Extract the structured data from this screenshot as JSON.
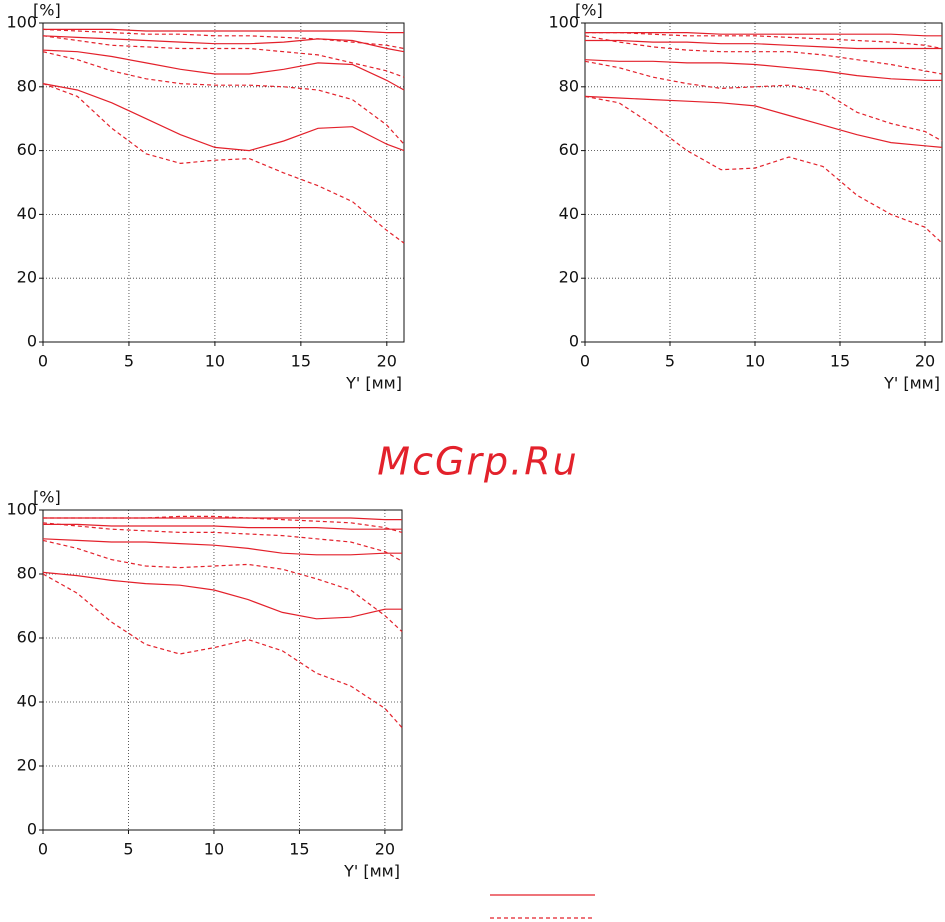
{
  "watermark": "McGrp.Ru",
  "chart_data": [
    {
      "type": "line",
      "ylabel": "[%]",
      "xlabel": "Y' [мм]",
      "grid": true,
      "x": [
        0,
        2,
        4,
        6,
        8,
        10,
        12,
        14,
        16,
        18,
        20,
        21
      ],
      "xlim": [
        0,
        21
      ],
      "xticks": [
        0,
        5,
        10,
        15,
        20
      ],
      "ylim": [
        0,
        100
      ],
      "yticks": [
        0,
        20,
        40,
        60,
        80,
        100
      ],
      "series": [
        {
          "color": "#e3212b",
          "dash": false,
          "values": [
            98,
            98,
            98,
            97.5,
            97.5,
            97.5,
            97.5,
            97.5,
            97.5,
            97.5,
            97,
            97
          ]
        },
        {
          "color": "#e3212b",
          "dash": false,
          "values": [
            96,
            95.5,
            95,
            94.5,
            94,
            93.5,
            93.5,
            94,
            95,
            94.5,
            92,
            91
          ]
        },
        {
          "color": "#e3212b",
          "dash": false,
          "values": [
            91.5,
            91,
            89.5,
            87.5,
            85.5,
            84,
            84,
            85.5,
            87.5,
            87,
            82,
            79
          ]
        },
        {
          "color": "#e3212b",
          "dash": false,
          "values": [
            81,
            79,
            75,
            70,
            65,
            61,
            60,
            63,
            67,
            67.5,
            62,
            60
          ]
        },
        {
          "color": "#e3212b",
          "dash": true,
          "values": [
            98,
            97.5,
            97,
            96.5,
            96.5,
            96,
            96,
            95.5,
            95,
            94,
            93,
            92
          ]
        },
        {
          "color": "#e3212b",
          "dash": true,
          "values": [
            96,
            94.5,
            93,
            92.5,
            92,
            92,
            92,
            91,
            90,
            87.5,
            85,
            83
          ]
        },
        {
          "color": "#e3212b",
          "dash": true,
          "values": [
            91,
            88.5,
            85,
            82.5,
            81,
            80.5,
            80.5,
            80,
            79,
            76,
            68,
            62
          ]
        },
        {
          "color": "#e3212b",
          "dash": true,
          "values": [
            81,
            77,
            67,
            59,
            56,
            57,
            57.5,
            53,
            49,
            44,
            35,
            31
          ]
        }
      ]
    },
    {
      "type": "line",
      "ylabel": "[%]",
      "xlabel": "Y' [мм]",
      "grid": true,
      "x": [
        0,
        2,
        4,
        6,
        8,
        10,
        12,
        14,
        16,
        18,
        20,
        21
      ],
      "xlim": [
        0,
        21
      ],
      "xticks": [
        0,
        5,
        10,
        15,
        20
      ],
      "ylim": [
        0,
        100
      ],
      "yticks": [
        0,
        20,
        40,
        60,
        80,
        100
      ],
      "series": [
        {
          "color": "#e3212b",
          "dash": false,
          "values": [
            97,
            97,
            97,
            97,
            96.5,
            96.5,
            96.5,
            96.5,
            96.5,
            96.5,
            96,
            96
          ]
        },
        {
          "color": "#e3212b",
          "dash": false,
          "values": [
            94.5,
            94.5,
            94,
            94,
            93.5,
            93.5,
            93,
            92.5,
            92,
            92,
            92,
            92
          ]
        },
        {
          "color": "#e3212b",
          "dash": false,
          "values": [
            88.5,
            88,
            88,
            87.5,
            87.5,
            87,
            86,
            85,
            83.5,
            82.5,
            82,
            82
          ]
        },
        {
          "color": "#e3212b",
          "dash": false,
          "values": [
            77,
            76.5,
            76,
            75.5,
            75,
            74,
            71,
            68,
            65,
            62.5,
            61.5,
            61
          ]
        },
        {
          "color": "#e3212b",
          "dash": true,
          "values": [
            97,
            97,
            96.5,
            96,
            96,
            96,
            95.5,
            95,
            94.5,
            94,
            93,
            92
          ]
        },
        {
          "color": "#e3212b",
          "dash": true,
          "values": [
            96,
            94,
            92.5,
            91.5,
            91,
            91,
            91,
            90,
            88.5,
            87,
            85,
            84
          ]
        },
        {
          "color": "#e3212b",
          "dash": true,
          "values": [
            88,
            86,
            83,
            81,
            79.5,
            80,
            80.5,
            78.5,
            72,
            68.5,
            66,
            63
          ]
        },
        {
          "color": "#e3212b",
          "dash": true,
          "values": [
            77,
            75,
            68,
            60,
            54,
            54.5,
            58,
            55,
            46,
            40,
            36,
            31
          ]
        }
      ]
    },
    {
      "type": "line",
      "ylabel": "[%]",
      "xlabel": "Y' [мм]",
      "grid": true,
      "x": [
        0,
        2,
        4,
        6,
        8,
        10,
        12,
        14,
        16,
        18,
        20,
        21
      ],
      "xlim": [
        0,
        21
      ],
      "xticks": [
        0,
        5,
        10,
        15,
        20
      ],
      "ylim": [
        0,
        100
      ],
      "yticks": [
        0,
        20,
        40,
        60,
        80,
        100
      ],
      "series": [
        {
          "color": "#e3212b",
          "dash": false,
          "values": [
            97.5,
            97.5,
            97.5,
            97.5,
            97.5,
            97.5,
            97.5,
            97.5,
            97.5,
            97.5,
            97,
            97
          ]
        },
        {
          "color": "#e3212b",
          "dash": false,
          "values": [
            95.5,
            95.5,
            95,
            95,
            95,
            95,
            94.5,
            94.5,
            94.5,
            94,
            94,
            94
          ]
        },
        {
          "color": "#e3212b",
          "dash": false,
          "values": [
            91,
            90.5,
            90,
            90,
            89.5,
            89,
            88,
            86.5,
            86,
            86,
            86.5,
            86.5
          ]
        },
        {
          "color": "#e3212b",
          "dash": false,
          "values": [
            80.5,
            79.5,
            78,
            77,
            76.5,
            75,
            72,
            68,
            66,
            66.5,
            69,
            69
          ]
        },
        {
          "color": "#e3212b",
          "dash": true,
          "values": [
            97.5,
            97.5,
            97.5,
            97.5,
            98,
            98,
            97.5,
            97,
            96.5,
            96,
            94.5,
            93
          ]
        },
        {
          "color": "#e3212b",
          "dash": true,
          "values": [
            96,
            95,
            94,
            93.5,
            93,
            93,
            92.5,
            92,
            91,
            90,
            87,
            84
          ]
        },
        {
          "color": "#e3212b",
          "dash": true,
          "values": [
            90.5,
            88,
            84.5,
            82.5,
            82,
            82.5,
            83,
            81.5,
            78.5,
            75,
            67,
            62
          ]
        },
        {
          "color": "#e3212b",
          "dash": true,
          "values": [
            80,
            74,
            65,
            58,
            55,
            57,
            59.5,
            56,
            49,
            45,
            38,
            32
          ]
        }
      ]
    }
  ]
}
